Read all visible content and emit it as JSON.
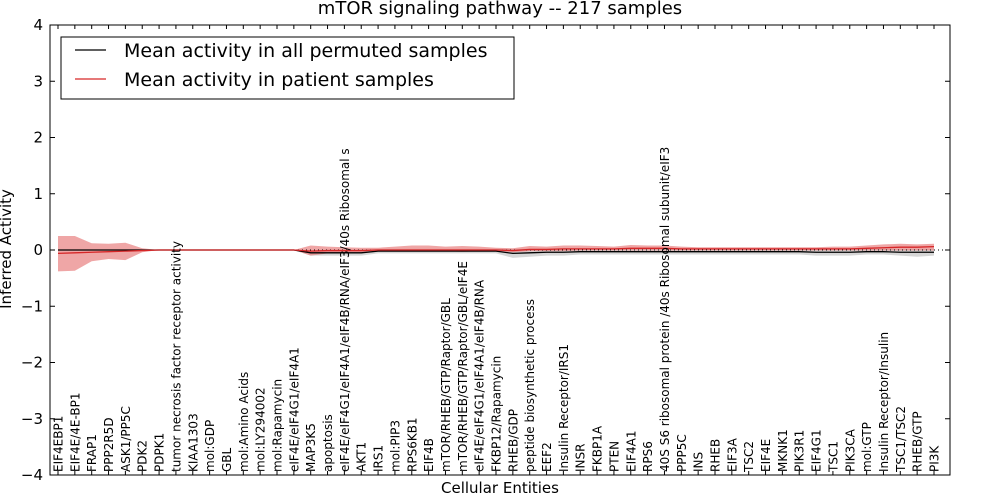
{
  "chart_data": {
    "type": "line",
    "title": "mTOR signaling pathway -- 217 samples",
    "xlabel": "Cellular Entities",
    "ylabel": "Inferred Activity",
    "ylim": [
      -4,
      4
    ],
    "yticks": [
      -4,
      -3,
      -2,
      -1,
      0,
      1,
      2,
      3,
      4
    ],
    "legend_placement": "top-left",
    "grid": false,
    "colors": {
      "permuted_line": "#000000",
      "permuted_band": "#c8c8c8",
      "patient_line": "#d62728",
      "patient_band": "#e88080",
      "frame": "#000000"
    },
    "categories": [
      "EIF4EBP1",
      "EIF4E/4E-BP1",
      "FRAP1",
      "PPP2R5D",
      "ASK1/PP5C",
      "PDK2",
      "PDPK1",
      "tumor necrosis factor receptor activity",
      "KIAA1303",
      "mol:GDP",
      "GBL",
      "mol:Amino Acids",
      "mol:LY294002",
      "mol:Rapamycin",
      "eIF4E/eIF4G1/eIF4A1",
      "MAP3K5",
      "apoptosis",
      "eIF4E/eIF4G1/eIF4A1/eIF4B/RNA/eIF3/40s Ribosomal s",
      "AKT1",
      "IRS1",
      "mol:PIP3",
      "RPS6KB1",
      "EIF4B",
      "mTOR/RHEB/GTP/Raptor/GBL",
      "mTOR/RHEB/GTP/Raptor/GBL/eIF4E",
      "eIF4E/eIF4G1/eIF4A1/eIF4B/RNA",
      "FKBP12/Rapamycin",
      "RHEB/GDP",
      "peptide biosynthetic process",
      "EEF2",
      "Insulin Receptor/IRS1",
      "INSR",
      "FKBP1A",
      "PTEN",
      "EIF4A1",
      "RPS6",
      "40S S6 ribosomal protein /40s Ribosomal subunit/eIF3",
      "PPP5C",
      "INS",
      "RHEB",
      "EIF3A",
      "TSC2",
      "EIF4E",
      "MKNK1",
      "PIK3R1",
      "EIF4G1",
      "TSC1",
      "PIK3CA",
      "mol:GTP",
      "Insulin Receptor/Insulin",
      "TSC1/TSC2",
      "RHEB/GTP",
      "PI3K"
    ],
    "series": [
      {
        "name": "Mean activity in all permuted samples",
        "values": [
          0,
          0,
          0,
          0,
          0,
          0,
          0,
          0,
          0,
          0,
          0,
          0,
          0,
          0,
          0,
          -0.05,
          -0.05,
          -0.05,
          -0.05,
          -0.02,
          -0.02,
          -0.02,
          -0.02,
          -0.02,
          -0.02,
          -0.02,
          -0.02,
          -0.06,
          -0.05,
          -0.04,
          -0.04,
          -0.03,
          -0.03,
          -0.03,
          -0.03,
          -0.03,
          -0.03,
          -0.03,
          -0.03,
          -0.03,
          -0.03,
          -0.03,
          -0.03,
          -0.03,
          -0.03,
          -0.04,
          -0.04,
          -0.04,
          -0.03,
          -0.03,
          -0.04,
          -0.04,
          -0.04
        ],
        "lower": [
          0,
          0,
          0,
          0,
          0,
          0,
          0,
          0,
          0,
          0,
          0,
          0,
          0,
          0,
          0,
          -0.1,
          -0.1,
          -0.1,
          -0.1,
          -0.06,
          -0.06,
          -0.06,
          -0.06,
          -0.06,
          -0.06,
          -0.06,
          -0.06,
          -0.14,
          -0.12,
          -0.1,
          -0.1,
          -0.08,
          -0.08,
          -0.08,
          -0.08,
          -0.08,
          -0.08,
          -0.08,
          -0.08,
          -0.08,
          -0.08,
          -0.08,
          -0.08,
          -0.08,
          -0.08,
          -0.1,
          -0.1,
          -0.1,
          -0.08,
          -0.08,
          -0.1,
          -0.12,
          -0.1
        ],
        "upper": [
          0,
          0,
          0,
          0,
          0,
          0,
          0,
          0,
          0,
          0,
          0,
          0,
          0,
          0,
          0,
          0,
          0,
          0,
          0,
          0.02,
          0.02,
          0.02,
          0.02,
          0.02,
          0.02,
          0.02,
          0.02,
          0.02,
          0.02,
          0.02,
          0.02,
          0.02,
          0.02,
          0.02,
          0.02,
          0.02,
          0.02,
          0.02,
          0.02,
          0.02,
          0.02,
          0.02,
          0.02,
          0.02,
          0.02,
          0.02,
          0.02,
          0.02,
          0.02,
          0.02,
          0.02,
          0.02,
          0.02
        ]
      },
      {
        "name": "Mean activity in patient samples",
        "values": [
          -0.06,
          -0.05,
          -0.04,
          -0.03,
          -0.02,
          -0.01,
          0,
          0,
          0,
          0,
          0,
          0,
          0,
          0,
          0,
          -0.02,
          -0.01,
          -0.01,
          -0.01,
          0,
          0,
          0,
          0,
          0,
          0,
          0,
          0,
          -0.01,
          0.01,
          0.01,
          0.02,
          0.02,
          0.02,
          0.02,
          0.03,
          0.03,
          0.03,
          0.02,
          0.02,
          0.02,
          0.02,
          0.02,
          0.02,
          0.02,
          0.02,
          0.02,
          0.02,
          0.02,
          0.03,
          0.04,
          0.05,
          0.05,
          0.06
        ],
        "lower": [
          -0.38,
          -0.37,
          -0.2,
          -0.16,
          -0.18,
          -0.04,
          0,
          0,
          0,
          0,
          0,
          0,
          0,
          0,
          0,
          -0.1,
          -0.06,
          -0.04,
          -0.04,
          -0.02,
          -0.02,
          -0.02,
          -0.02,
          -0.02,
          -0.03,
          -0.02,
          -0.02,
          -0.04,
          -0.02,
          -0.02,
          -0.02,
          -0.01,
          -0.01,
          -0.01,
          -0.01,
          -0.01,
          -0.01,
          -0.01,
          -0.01,
          -0.01,
          -0.01,
          -0.01,
          -0.01,
          -0.01,
          -0.01,
          -0.01,
          -0.01,
          -0.01,
          -0.01,
          -0.01,
          -0.01,
          -0.01,
          -0.01
        ],
        "upper": [
          0.25,
          0.25,
          0.12,
          0.11,
          0.13,
          0.03,
          0,
          0,
          0,
          0,
          0,
          0,
          0,
          0,
          0,
          0.08,
          0.06,
          0.05,
          0.04,
          0.04,
          0.06,
          0.08,
          0.08,
          0.06,
          0.07,
          0.06,
          0.04,
          0.03,
          0.07,
          0.06,
          0.08,
          0.08,
          0.07,
          0.06,
          0.09,
          0.08,
          0.08,
          0.06,
          0.05,
          0.05,
          0.05,
          0.05,
          0.05,
          0.05,
          0.05,
          0.05,
          0.06,
          0.06,
          0.08,
          0.1,
          0.11,
          0.1,
          0.11
        ]
      }
    ]
  }
}
